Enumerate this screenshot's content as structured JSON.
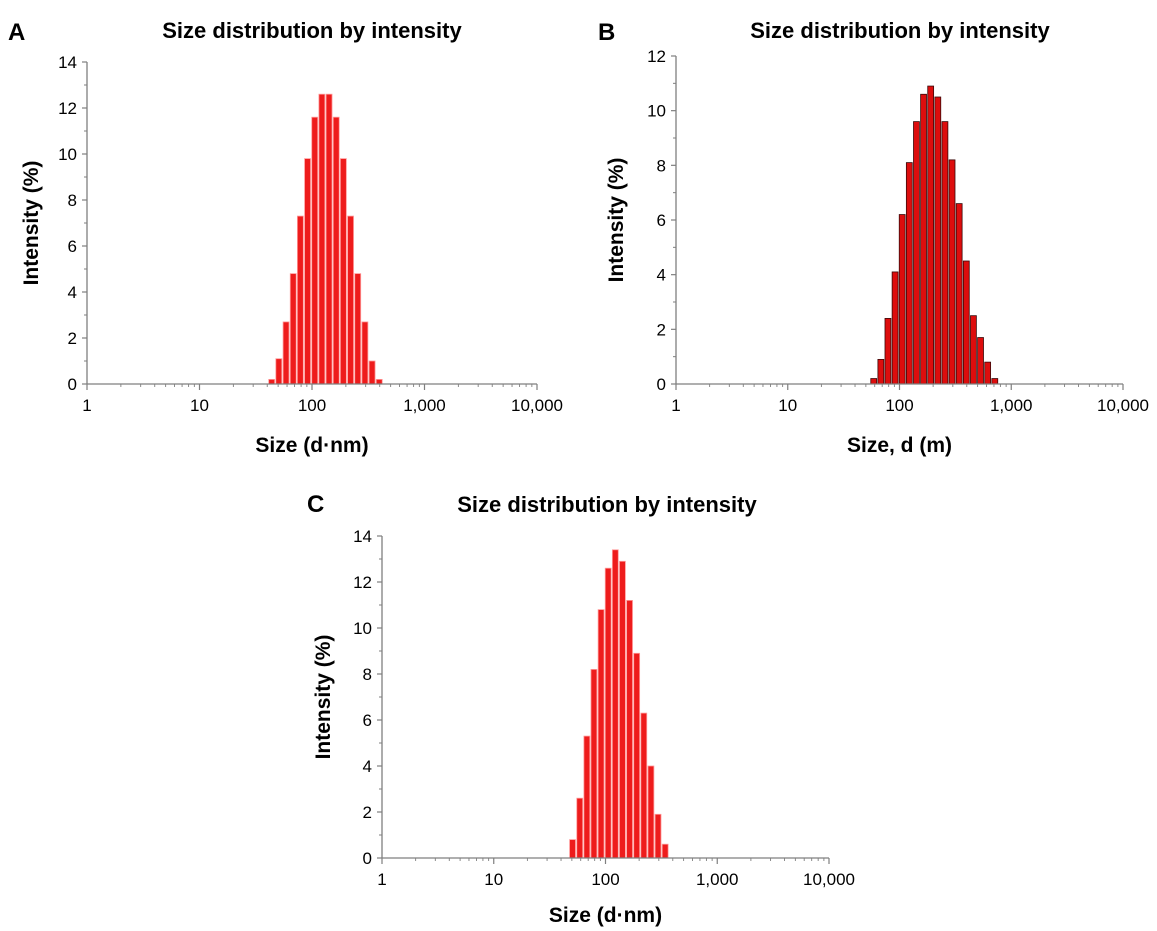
{
  "figure": {
    "colors": {
      "bar_fill_a": "#ee1c1c",
      "bar_fill_b": "#dd0d0d",
      "bar_fill_c": "#ee1c1c",
      "bar_edge_light": "#ff9a9a",
      "bar_edge_dark": "#3a0a0a",
      "axis": "#7f7f7f"
    }
  },
  "chart_data": [
    {
      "panel_label": "A",
      "type": "bar",
      "title": "Size distribution by intensity",
      "xlabel": "Size (d·nm)",
      "ylabel": "Intensity (%)",
      "x_scale": "log",
      "xlim": [
        1,
        10000
      ],
      "ylim": [
        0,
        14
      ],
      "grid": false,
      "x_ticks": [
        1,
        10,
        100,
        1000,
        10000
      ],
      "x_tick_labels": [
        "1",
        "10",
        "100",
        "1,000",
        "10,000"
      ],
      "y_ticks": [
        0,
        2,
        4,
        6,
        8,
        10,
        12,
        14
      ],
      "y_tick_labels": [
        "0",
        "2",
        "4",
        "6",
        "8",
        "10",
        "12",
        "14"
      ],
      "bar_width_decades": 0.0528,
      "series": [
        {
          "x": [
            43.8,
            50.7,
            58.8,
            68.1,
            78.8,
            91.3,
            105.7,
            122.4,
            141.8,
            164.2,
            190.1,
            220.2,
            255.0,
            295.3,
            342.0,
            396.1
          ],
          "values": [
            0.2,
            1.1,
            2.7,
            4.8,
            7.3,
            9.8,
            11.6,
            12.6,
            12.6,
            11.6,
            9.8,
            7.3,
            4.8,
            2.7,
            1.0,
            0.2
          ]
        }
      ]
    },
    {
      "panel_label": "B",
      "type": "bar",
      "title": "Size distribution by intensity",
      "xlabel": "Size, d (m)",
      "ylabel": "Intensity (%)",
      "x_scale": "log",
      "xlim": [
        1,
        10000
      ],
      "ylim": [
        0,
        12
      ],
      "grid": false,
      "x_ticks": [
        1,
        10,
        100,
        1000,
        10000
      ],
      "x_tick_labels": [
        "1",
        "10",
        "100",
        "1,000",
        "10,000"
      ],
      "y_ticks": [
        0,
        2,
        4,
        6,
        8,
        10,
        12
      ],
      "y_tick_labels": [
        "0",
        "2",
        "4",
        "6",
        "8",
        "10",
        "12"
      ],
      "bar_width_decades": 0.0528,
      "series": [
        {
          "x": [
            58.8,
            68.1,
            78.8,
            91.3,
            105.7,
            122.4,
            141.8,
            164.2,
            190.1,
            220.2,
            255.0,
            295.3,
            342.0,
            396.1,
            458.7,
            531.2,
            615.1,
            712.4
          ],
          "values": [
            0.2,
            0.9,
            2.4,
            4.1,
            6.2,
            8.1,
            9.6,
            10.6,
            10.9,
            10.5,
            9.6,
            8.2,
            6.6,
            4.5,
            2.5,
            1.7,
            0.8,
            0.2
          ]
        }
      ]
    },
    {
      "panel_label": "C",
      "type": "bar",
      "title": "Size distribution by intensity",
      "xlabel": "Size (d·nm)",
      "ylabel": "Intensity (%)",
      "x_scale": "log",
      "xlim": [
        1,
        10000
      ],
      "ylim": [
        0,
        14
      ],
      "grid": false,
      "x_ticks": [
        1,
        10,
        100,
        1000,
        10000
      ],
      "x_tick_labels": [
        "1",
        "10",
        "100",
        "1,000",
        "10,000"
      ],
      "y_ticks": [
        0,
        2,
        4,
        6,
        8,
        10,
        12,
        14
      ],
      "y_tick_labels": [
        "0",
        "2",
        "4",
        "6",
        "8",
        "10",
        "12",
        "14"
      ],
      "bar_width_decades": 0.0528,
      "series": [
        {
          "x": [
            50.7,
            58.8,
            68.1,
            78.8,
            91.3,
            105.7,
            122.4,
            141.8,
            164.2,
            190.1,
            220.2,
            255.0,
            295.3,
            342.0
          ],
          "values": [
            0.8,
            2.6,
            5.3,
            8.2,
            10.8,
            12.6,
            13.4,
            12.9,
            11.2,
            8.9,
            6.3,
            4.0,
            1.9,
            0.6
          ]
        }
      ]
    }
  ]
}
